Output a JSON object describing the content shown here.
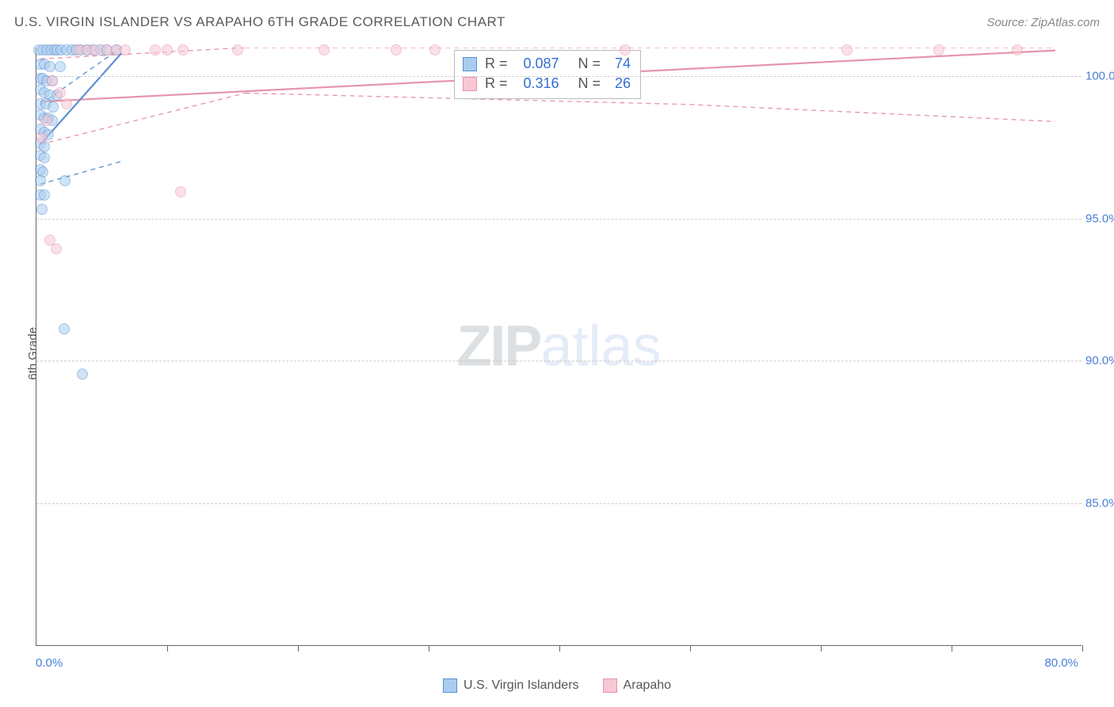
{
  "title": "U.S. VIRGIN ISLANDER VS ARAPAHO 6TH GRADE CORRELATION CHART",
  "source": "Source: ZipAtlas.com",
  "watermark": {
    "bold": "ZIP",
    "light": "atlas"
  },
  "axes": {
    "y_label": "6th Grade",
    "x_min_label": "0.0%",
    "x_max_label": "80.0%",
    "x_domain": [
      0,
      80
    ],
    "y_domain": [
      80,
      101
    ],
    "y_ticks": [
      {
        "v": 85,
        "label": "85.0%"
      },
      {
        "v": 90,
        "label": "90.0%"
      },
      {
        "v": 95,
        "label": "95.0%"
      },
      {
        "v": 100,
        "label": "100.0%"
      }
    ],
    "x_tick_positions": [
      0,
      10,
      20,
      30,
      40,
      50,
      60,
      70,
      80
    ],
    "grid_color": "#cccccc",
    "axis_color": "#666666",
    "tick_label_color": "#4a7fd6",
    "axis_label_color": "#555555",
    "label_fontsize": 15
  },
  "series": {
    "usvi": {
      "label": "U.S. Virgin Islanders",
      "fill": "#a9cdf0",
      "stroke": "#5a8fd0",
      "r_value": "0.087",
      "n_value": "74",
      "trend": {
        "x1": 0.3,
        "y1": 97.6,
        "x2": 6.5,
        "y2": 100.8
      },
      "ci_band": [
        {
          "x": 0.3,
          "lo": 96.2,
          "hi": 99.0
        },
        {
          "x": 6.5,
          "lo": 97.0,
          "hi": 101.0
        }
      ],
      "points": [
        {
          "x": 0.2,
          "y": 100.9
        },
        {
          "x": 0.5,
          "y": 100.9
        },
        {
          "x": 0.8,
          "y": 100.9
        },
        {
          "x": 1.1,
          "y": 100.9
        },
        {
          "x": 1.4,
          "y": 100.9
        },
        {
          "x": 1.6,
          "y": 100.9
        },
        {
          "x": 1.9,
          "y": 100.9
        },
        {
          "x": 2.3,
          "y": 100.9
        },
        {
          "x": 2.7,
          "y": 100.9
        },
        {
          "x": 3.0,
          "y": 100.9
        },
        {
          "x": 3.4,
          "y": 100.9
        },
        {
          "x": 3.9,
          "y": 100.9
        },
        {
          "x": 4.3,
          "y": 100.9
        },
        {
          "x": 4.9,
          "y": 100.9
        },
        {
          "x": 5.4,
          "y": 100.9
        },
        {
          "x": 6.1,
          "y": 100.9
        },
        {
          "x": 0.3,
          "y": 100.4
        },
        {
          "x": 0.6,
          "y": 100.4
        },
        {
          "x": 1.0,
          "y": 100.3
        },
        {
          "x": 1.8,
          "y": 100.3
        },
        {
          "x": 0.3,
          "y": 99.9
        },
        {
          "x": 0.5,
          "y": 99.9
        },
        {
          "x": 0.8,
          "y": 99.8
        },
        {
          "x": 1.2,
          "y": 99.8
        },
        {
          "x": 0.3,
          "y": 99.5
        },
        {
          "x": 0.6,
          "y": 99.4
        },
        {
          "x": 1.0,
          "y": 99.3
        },
        {
          "x": 1.6,
          "y": 99.3
        },
        {
          "x": 0.3,
          "y": 99.0
        },
        {
          "x": 0.7,
          "y": 99.0
        },
        {
          "x": 1.3,
          "y": 98.9
        },
        {
          "x": 0.3,
          "y": 98.6
        },
        {
          "x": 0.6,
          "y": 98.5
        },
        {
          "x": 0.9,
          "y": 98.5
        },
        {
          "x": 1.2,
          "y": 98.4
        },
        {
          "x": 0.3,
          "y": 98.1
        },
        {
          "x": 0.6,
          "y": 98.0
        },
        {
          "x": 0.9,
          "y": 97.9
        },
        {
          "x": 0.3,
          "y": 97.6
        },
        {
          "x": 0.6,
          "y": 97.5
        },
        {
          "x": 0.3,
          "y": 97.2
        },
        {
          "x": 0.6,
          "y": 97.1
        },
        {
          "x": 0.3,
          "y": 96.7
        },
        {
          "x": 0.5,
          "y": 96.6
        },
        {
          "x": 0.3,
          "y": 96.3
        },
        {
          "x": 2.2,
          "y": 96.3
        },
        {
          "x": 0.3,
          "y": 95.8
        },
        {
          "x": 0.6,
          "y": 95.8
        },
        {
          "x": 0.4,
          "y": 95.3
        },
        {
          "x": 2.1,
          "y": 91.1
        },
        {
          "x": 3.5,
          "y": 89.5
        }
      ]
    },
    "arapaho": {
      "label": "Arapaho",
      "fill": "#f7c8d4",
      "stroke": "#e695ab",
      "r_value": "0.316",
      "n_value": "26",
      "trend": {
        "x1": 0.3,
        "y1": 99.1,
        "x2": 78,
        "y2": 100.9
      },
      "ci_band": [
        {
          "x": 0.3,
          "lo": 97.6,
          "hi": 100.6
        },
        {
          "x": 16,
          "lo": 99.4,
          "hi": 101.0
        },
        {
          "x": 50,
          "lo": 99.0,
          "hi": 101.0
        },
        {
          "x": 78,
          "lo": 98.4,
          "hi": 101.0
        }
      ],
      "points": [
        {
          "x": 3.2,
          "y": 100.9
        },
        {
          "x": 3.9,
          "y": 100.9
        },
        {
          "x": 4.5,
          "y": 100.9
        },
        {
          "x": 5.4,
          "y": 100.9
        },
        {
          "x": 6.1,
          "y": 100.9
        },
        {
          "x": 6.8,
          "y": 100.9
        },
        {
          "x": 9.1,
          "y": 100.9
        },
        {
          "x": 10.0,
          "y": 100.9
        },
        {
          "x": 11.2,
          "y": 100.9
        },
        {
          "x": 15.4,
          "y": 100.9
        },
        {
          "x": 22.0,
          "y": 100.9
        },
        {
          "x": 27.5,
          "y": 100.9
        },
        {
          "x": 30.5,
          "y": 100.9
        },
        {
          "x": 45.0,
          "y": 100.9
        },
        {
          "x": 62.0,
          "y": 100.9
        },
        {
          "x": 69.0,
          "y": 100.9
        },
        {
          "x": 75.0,
          "y": 100.9
        },
        {
          "x": 1.2,
          "y": 99.8
        },
        {
          "x": 1.8,
          "y": 99.4
        },
        {
          "x": 2.3,
          "y": 99.0
        },
        {
          "x": 0.8,
          "y": 98.4
        },
        {
          "x": 0.4,
          "y": 97.8
        },
        {
          "x": 11.0,
          "y": 95.9
        },
        {
          "x": 1.0,
          "y": 94.2
        },
        {
          "x": 1.5,
          "y": 93.9
        }
      ]
    }
  },
  "stats_box": {
    "r_label": "R =",
    "n_label": "N ="
  },
  "chart_style": {
    "type": "scatter",
    "background_color": "#ffffff",
    "point_radius": 7,
    "point_opacity": 0.55,
    "title_fontsize": 17,
    "title_color": "#5a5a5a",
    "source_fontsize": 15
  }
}
